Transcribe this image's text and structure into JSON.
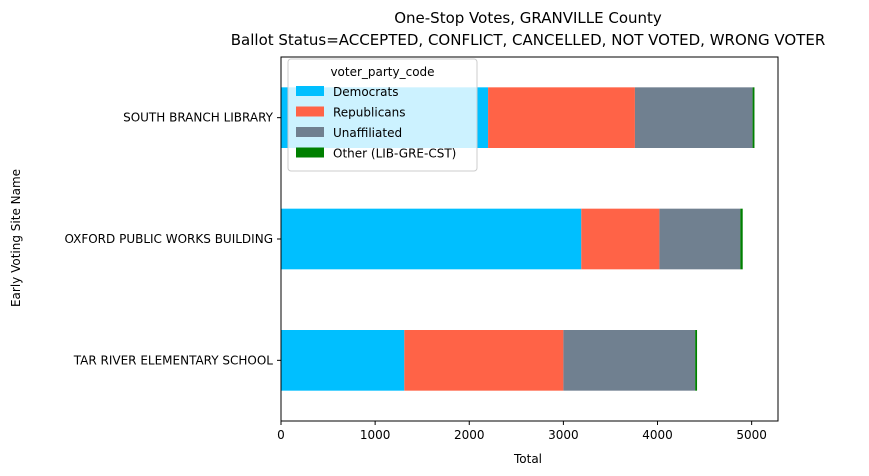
{
  "chart_data": {
    "type": "bar",
    "orientation": "horizontal",
    "stacked": true,
    "title": "One-Stop Votes, GRANVILLE County",
    "subtitle": "Ballot Status=ACCEPTED, CONFLICT, CANCELLED, NOT VOTED, WRONG VOTER",
    "xlabel": "Total",
    "ylabel": "Early Voting Site Name",
    "xlim": [
      0,
      5280
    ],
    "xticks": [
      0,
      1000,
      2000,
      3000,
      4000,
      5000
    ],
    "xtick_labels": [
      "0",
      "1000",
      "2000",
      "3000",
      "4000",
      "5000"
    ],
    "categories": [
      "TAR RIVER ELEMENTARY SCHOOL",
      "OXFORD PUBLIC WORKS BUILDING",
      "SOUTH BRANCH LIBRARY"
    ],
    "series": [
      {
        "name": "Democrats",
        "color": "#00bfff",
        "values": [
          1310,
          3190,
          2200
        ]
      },
      {
        "name": "Republicans",
        "color": "#ff6347",
        "values": [
          1690,
          830,
          1560
        ]
      },
      {
        "name": "Unaffiliated",
        "color": "#708090",
        "values": [
          1400,
          860,
          1250
        ]
      },
      {
        "name": "Other (LIB-GRE-CST)",
        "color": "#008000",
        "values": [
          20,
          25,
          20
        ]
      }
    ],
    "legend_title": "voter_party_code",
    "legend_position": "upper-left",
    "grid": false
  }
}
